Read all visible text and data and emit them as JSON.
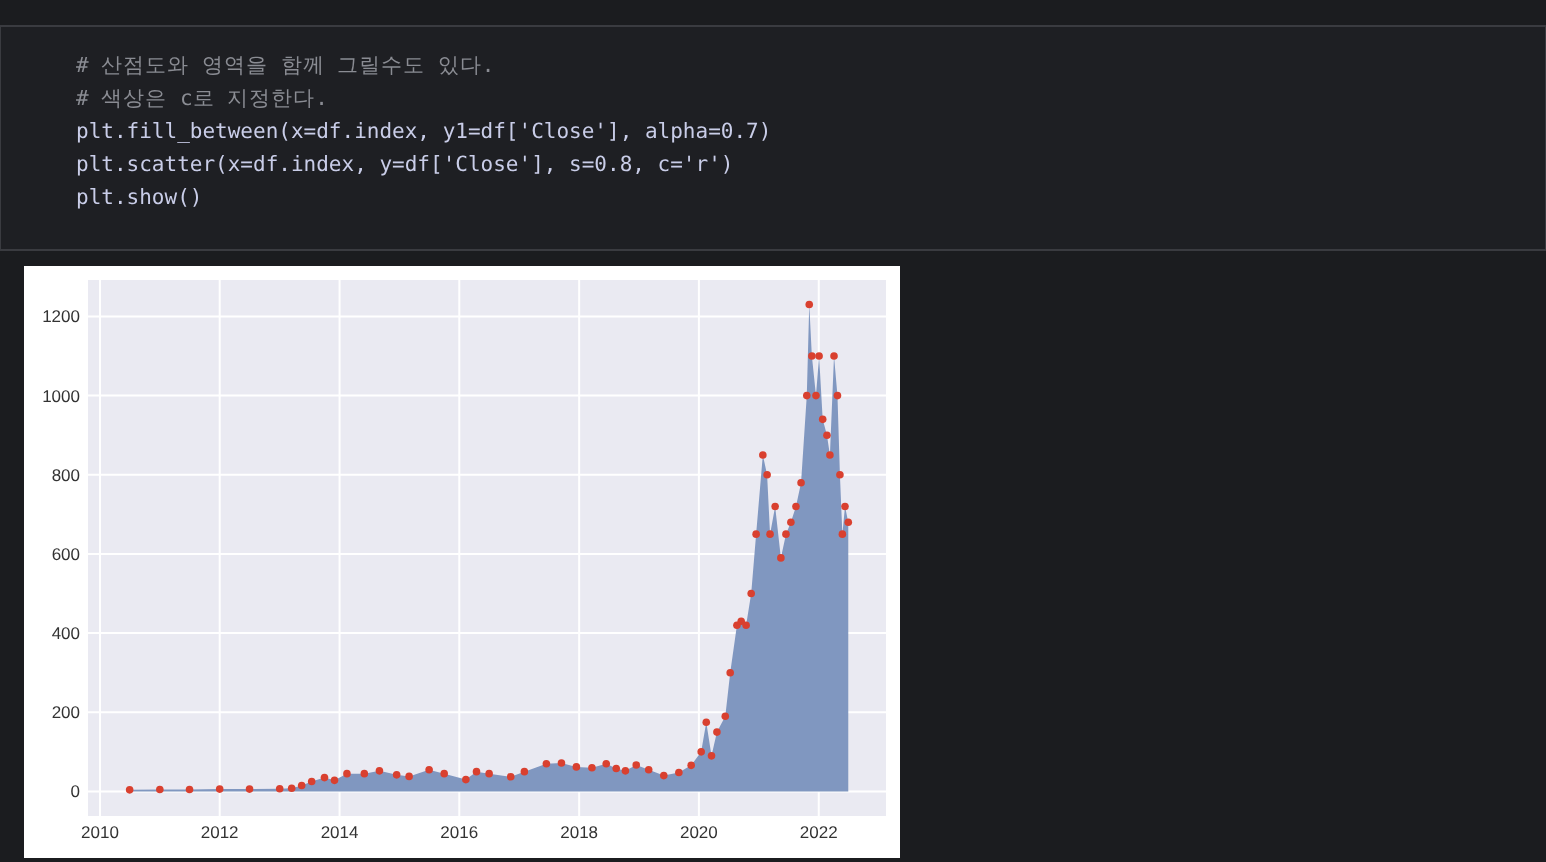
{
  "chart_data": {
    "type": "area",
    "annotations": [
      "# 산점도와 영역을 함께 그릴수도 있다.",
      "# 색상은 c로 지정한다.",
      "plt.fill_between(x=df.index, y1=df['Close'], alpha=0.7)",
      "plt.scatter(x=df.index, y=df['Close'], s=0.8, c='r')",
      "plt.show()"
    ],
    "x": [
      "2010-07-01",
      "2011-01-01",
      "2011-07-01",
      "2012-01-01",
      "2012-07-01",
      "2013-01-01",
      "2013-03-15",
      "2013-05-15",
      "2013-07-15",
      "2013-10-01",
      "2013-12-01",
      "2014-02-15",
      "2014-06-01",
      "2014-09-01",
      "2014-12-15",
      "2015-03-01",
      "2015-07-01",
      "2015-10-01",
      "2016-02-10",
      "2016-04-15",
      "2016-07-01",
      "2016-11-10",
      "2017-02-01",
      "2017-06-15",
      "2017-09-15",
      "2017-12-15",
      "2018-03-20",
      "2018-06-15",
      "2018-08-15",
      "2018-10-10",
      "2018-12-15",
      "2019-03-01",
      "2019-06-01",
      "2019-09-01",
      "2019-11-15",
      "2020-01-15",
      "2020-02-15",
      "2020-03-18",
      "2020-04-20",
      "2020-06-10",
      "2020-07-10",
      "2020-08-20",
      "2020-09-15",
      "2020-10-15",
      "2020-11-15",
      "2020-12-15",
      "2021-01-25",
      "2021-02-20",
      "2021-03-10",
      "2021-04-10",
      "2021-05-15",
      "2021-06-15",
      "2021-07-15",
      "2021-08-15",
      "2021-09-15",
      "2021-10-20",
      "2021-11-04",
      "2021-11-20",
      "2021-12-15",
      "2022-01-03",
      "2022-01-25",
      "2022-02-20",
      "2022-03-10",
      "2022-04-04",
      "2022-04-25",
      "2022-05-10",
      "2022-05-25",
      "2022-06-10",
      "2022-06-30"
    ],
    "series": [
      {
        "color": "#8097c0",
        "values": [
          4,
          5,
          5,
          6,
          6,
          7,
          8,
          15,
          25,
          35,
          28,
          45,
          45,
          52,
          42,
          38,
          55,
          45,
          30,
          50,
          45,
          37,
          50,
          70,
          72,
          62,
          60,
          70,
          58,
          52,
          67,
          55,
          40,
          48,
          66,
          100,
          175,
          90,
          150,
          190,
          300,
          420,
          430,
          420,
          500,
          650,
          850,
          800,
          650,
          720,
          590,
          650,
          680,
          720,
          780,
          1000,
          1230,
          1100,
          1000,
          1100,
          940,
          900,
          850,
          1100,
          1000,
          800,
          650,
          720,
          680
        ]
      },
      {
        "type": "scatter",
        "color": "#d9402f",
        "marker": "circle",
        "values": [
          4,
          5,
          5,
          6,
          6,
          7,
          8,
          15,
          25,
          35,
          28,
          45,
          45,
          52,
          42,
          38,
          55,
          45,
          30,
          50,
          45,
          37,
          50,
          70,
          72,
          62,
          60,
          70,
          58,
          52,
          67,
          55,
          40,
          48,
          66,
          100,
          175,
          90,
          150,
          190,
          300,
          420,
          430,
          420,
          500,
          650,
          850,
          800,
          650,
          720,
          590,
          650,
          680,
          720,
          780,
          1000,
          1230,
          1100,
          1000,
          1100,
          940,
          900,
          850,
          1100,
          1000,
          800,
          650,
          720,
          680
        ]
      }
    ],
    "xlim": [
      "2009-10-20",
      "2023-02-15"
    ],
    "xticks": [
      {
        "value": "2010",
        "label": "2010"
      },
      {
        "value": "2012",
        "label": "2012"
      },
      {
        "value": "2014",
        "label": "2014"
      },
      {
        "value": "2016",
        "label": "2016"
      },
      {
        "value": "2018",
        "label": "2018"
      },
      {
        "value": "2020",
        "label": "2020"
      },
      {
        "value": "2022",
        "label": "2022"
      }
    ],
    "ylim": [
      -62,
      1292
    ],
    "yticks": [
      0,
      200,
      400,
      600,
      800,
      1000,
      1200
    ],
    "grid": true
  }
}
